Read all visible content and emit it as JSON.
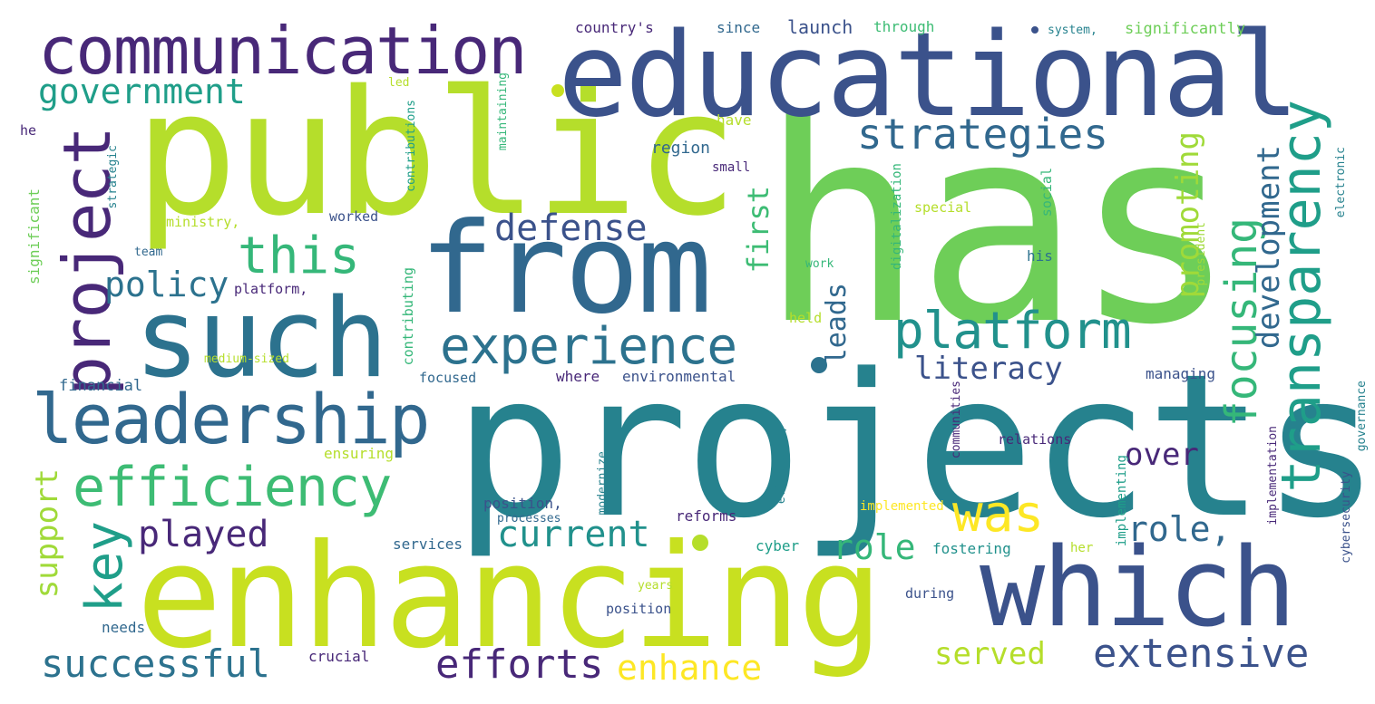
{
  "palette": {
    "background": "#ffffff",
    "dark_purple": "#482878",
    "indigo": "#3b528b",
    "steel_blue": "#31688e",
    "teal": "#26828e",
    "green_teal": "#1f9e89",
    "green": "#35b779",
    "light_green": "#6ece58",
    "lime": "#b5de2b",
    "yellow": "#fde725"
  },
  "words": {
    "has": "has",
    "projects": "projects",
    "public": "public",
    "enhancing": "enhancing",
    "educational": "educational",
    "from": "from",
    "which": "which",
    "such": "such",
    "communication": "communication",
    "leadership": "leadership",
    "project": "project",
    "efficiency": "efficiency",
    "experience": "experience",
    "platform": "platform",
    "transparency": "transparency",
    "strategies": "strategies",
    "this": "this",
    "key": "key",
    "extensive": "extensive",
    "successful": "successful",
    "efforts": "efforts",
    "was": "was",
    "focusing": "focusing",
    "government": "government",
    "current": "current",
    "played": "played",
    "defense": "defense",
    "enhance": "enhance",
    "development": "development",
    "promoting": "promoting",
    "policy": "policy",
    "role_comma": "role,",
    "role": "role",
    "literacy": "literacy",
    "served": "served",
    "support": "support",
    "first": "first",
    "over": "over",
    "leads": "leads",
    "countrys": "country's",
    "since": "since",
    "launch": "launch",
    "through": "through",
    "system_comma": "system,",
    "significantly": "significantly",
    "led": "led",
    "maintaining": "maintaining",
    "have": "have",
    "region": "region",
    "small": "small",
    "he": "he",
    "contributions": "contributions",
    "worked": "worked",
    "ministry_comma": "ministry,",
    "strategic": "strategic",
    "significant": "significant",
    "team": "team",
    "platform_comma": "platform,",
    "contributing": "contributing",
    "digitalization": "digitalization",
    "special": "special",
    "social": "social",
    "president": "president",
    "electronic": "electronic",
    "work": "work",
    "his": "his",
    "held": "held",
    "financial": "financial",
    "medium_sized": "medium-sized",
    "focused": "focused",
    "where": "where",
    "environmental": "environmental",
    "managing": "managing",
    "governance": "governance",
    "cybersecurity": "cybersecurity",
    "efficiency_comma": "efficiency,",
    "communities": "communities",
    "ensuring": "ensuring",
    "relations": "relations",
    "implementation": "implementation",
    "implementing": "implementing",
    "modernize": "modernize",
    "processes": "processes",
    "position_comma": "position,",
    "implemented": "implemented",
    "reforms": "reforms",
    "services": "services",
    "cyber": "cyber",
    "fostering": "fostering",
    "her": "her",
    "years": "years",
    "position": "position",
    "during": "during",
    "needs": "needs",
    "crucial": "crucial"
  }
}
